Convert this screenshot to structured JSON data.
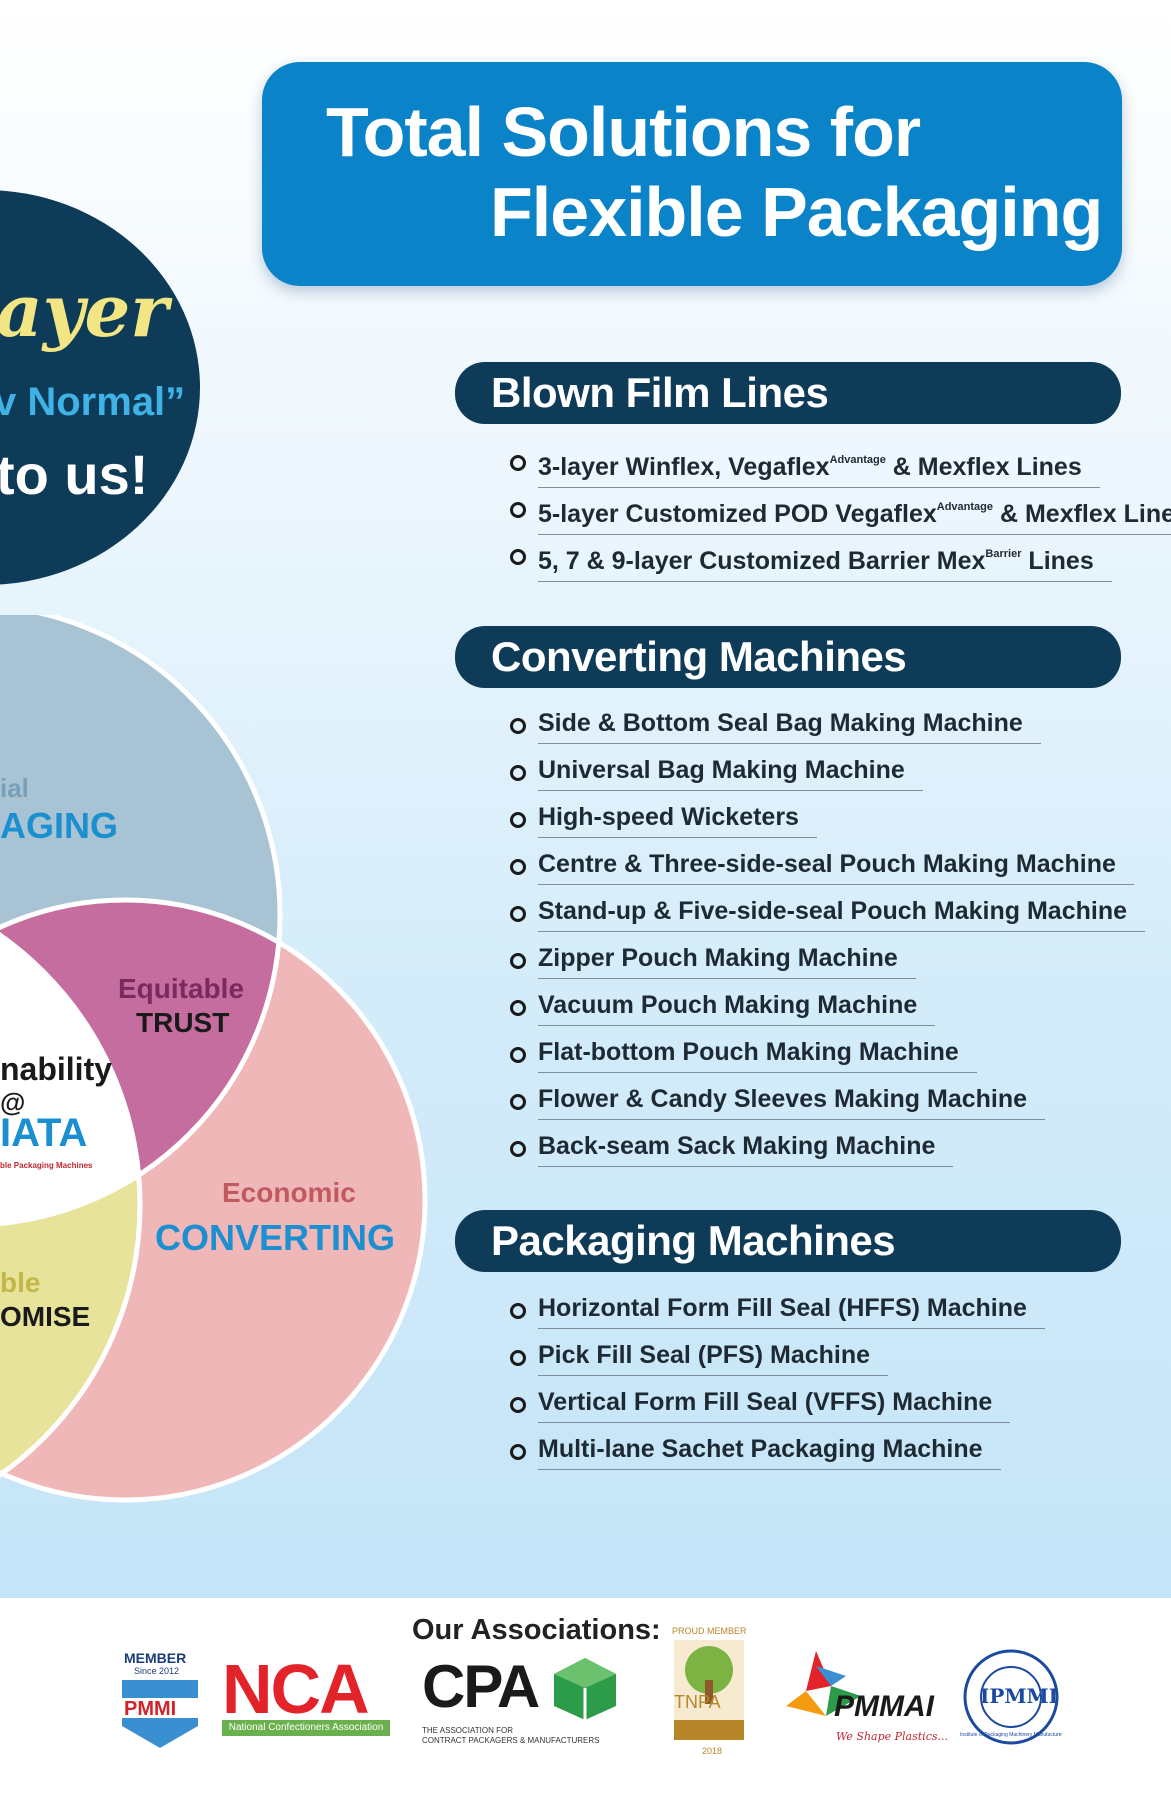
{
  "hero": {
    "line1": "Total Solutions for",
    "line2": "Flexible Packaging"
  },
  "side_circle": {
    "word": "ayer",
    "normal": "v Normal”",
    "tous": "to us!"
  },
  "venn": {
    "top_small": "ial",
    "top_big": "AGING",
    "trust_small": "Equitable",
    "trust_big": "TRUST",
    "center_line1": "nability",
    "center_line2": "@",
    "center_line3": "IATA",
    "center_tiny": "ble Packaging Machines",
    "conv_small": "Economic",
    "conv_big": "CONVERTING",
    "promise_small": "ble",
    "promise_big": "OMISE"
  },
  "sections": [
    {
      "title": "Blown Film Lines",
      "items": [
        {
          "pre": "3-layer Winflex, Vegaflex",
          "sup": "Advantage",
          "post": " & Mexflex Lines"
        },
        {
          "pre": "5-layer Customized POD Vegaflex",
          "sup": "Advantage",
          "post": " & Mexflex Lines"
        },
        {
          "pre": "5, 7 & 9-layer Customized Barrier Mex",
          "sup": "Barrier",
          "post": " Lines"
        }
      ]
    },
    {
      "title": "Converting Machines",
      "items": [
        {
          "pre": "Side & Bottom Seal Bag Making Machine"
        },
        {
          "pre": "Universal Bag Making Machine"
        },
        {
          "pre": "High-speed Wicketers"
        },
        {
          "pre": "Centre & Three-side-seal Pouch Making Machine"
        },
        {
          "pre": "Stand-up & Five-side-seal Pouch Making Machine"
        },
        {
          "pre": "Zipper Pouch Making Machine"
        },
        {
          "pre": "Vacuum Pouch Making Machine"
        },
        {
          "pre": "Flat-bottom Pouch Making Machine"
        },
        {
          "pre": "Flower & Candy Sleeves Making Machine"
        },
        {
          "pre": "Back-seam Sack Making Machine"
        }
      ]
    },
    {
      "title": "Packaging Machines",
      "items": [
        {
          "pre": "Horizontal Form Fill Seal (HFFS) Machine"
        },
        {
          "pre": "Pick Fill Seal (PFS) Machine"
        },
        {
          "pre": "Vertical Form Fill Seal (VFFS) Machine"
        },
        {
          "pre": "Multi-lane Sachet Packaging Machine"
        }
      ]
    }
  ],
  "footer": {
    "title": "Our Associations:",
    "pmmi": {
      "member": "MEMBER",
      "since": "Since 2012",
      "name": "PMMI"
    },
    "nca": {
      "name": "NCA",
      "sub": "National Confectioners Association"
    },
    "cpa": {
      "name": "CPA",
      "sub1": "THE ASSOCIATION FOR",
      "sub2": "CONTRACT PACKAGERS & MANUFACTURERS"
    },
    "tnpa": {
      "top": "PROUD MEMBER",
      "name": "TNPA",
      "year": "2018"
    },
    "pmmai": {
      "name": "PMMAI",
      "tag": "We Shape Plastics..."
    },
    "ipmmi": {
      "name": "IPMMI",
      "ring": "Institute of Packaging Machinery Manufacturers of India"
    }
  }
}
